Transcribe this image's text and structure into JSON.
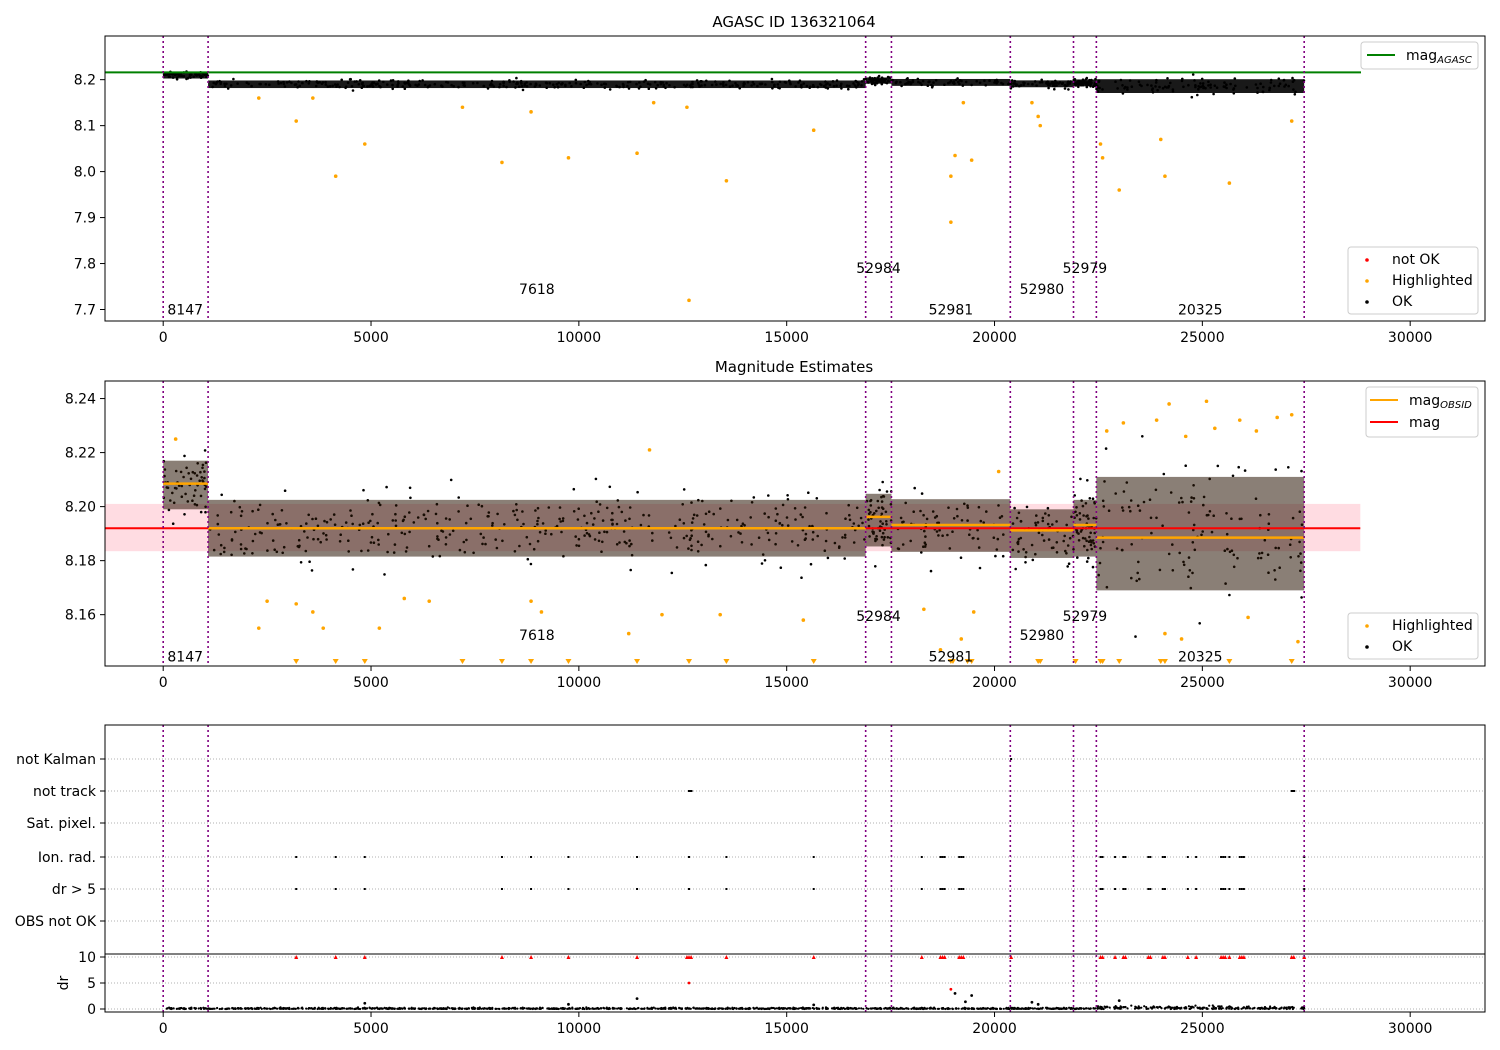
{
  "chart_data": [
    {
      "type": "scatter",
      "title": "AGASC ID 136321064",
      "xlim": [
        -1400,
        31800
      ],
      "ylim": [
        7.675,
        8.295
      ],
      "xticks": [
        0,
        5000,
        10000,
        15000,
        20000,
        25000,
        30000
      ],
      "yticks": [
        7.7,
        7.8,
        7.9,
        8.0,
        8.1,
        8.2
      ],
      "ytick_labels": [
        "7.7",
        "7.8",
        "7.9",
        "8.0",
        "8.1",
        "8.2"
      ],
      "grid": false,
      "mag_agasc": 8.216,
      "ok_band": [
        {
          "x0": 0,
          "x1": 1080,
          "center": 8.21,
          "halfwidth": 0.01
        },
        {
          "x0": 1080,
          "x1": 16900,
          "center": 8.19,
          "halfwidth": 0.011
        },
        {
          "x0": 16900,
          "x1": 17520,
          "center": 8.198,
          "halfwidth": 0.009
        },
        {
          "x0": 17520,
          "x1": 20380,
          "center": 8.194,
          "halfwidth": 0.01
        },
        {
          "x0": 20380,
          "x1": 21900,
          "center": 8.191,
          "halfwidth": 0.01
        },
        {
          "x0": 21900,
          "x1": 22450,
          "center": 8.193,
          "halfwidth": 0.01
        },
        {
          "x0": 22450,
          "x1": 27450,
          "center": 8.186,
          "halfwidth": 0.02
        }
      ],
      "highlighted_points": [
        [
          3200,
          8.11
        ],
        [
          4150,
          7.99
        ],
        [
          4850,
          8.06
        ],
        [
          8150,
          8.02
        ],
        [
          8850,
          8.13
        ],
        [
          9750,
          8.03
        ],
        [
          11400,
          8.04
        ],
        [
          12650,
          7.72
        ],
        [
          13550,
          7.98
        ],
        [
          15650,
          8.09
        ],
        [
          18950,
          7.99
        ],
        [
          18950,
          7.89
        ],
        [
          19050,
          8.035
        ],
        [
          19450,
          8.025
        ],
        [
          19250,
          8.15
        ],
        [
          21050,
          8.12
        ],
        [
          21100,
          8.1
        ],
        [
          22550,
          8.06
        ],
        [
          22600,
          8.03
        ],
        [
          23000,
          7.96
        ],
        [
          24000,
          8.07
        ],
        [
          24100,
          7.99
        ],
        [
          25650,
          7.975
        ],
        [
          27150,
          8.11
        ],
        [
          7200,
          8.14
        ],
        [
          11800,
          8.15
        ],
        [
          12600,
          8.14
        ],
        [
          20900,
          8.15
        ],
        [
          2300,
          8.16
        ],
        [
          3600,
          8.16
        ]
      ],
      "legend": {
        "position": "bottom-right",
        "entries": [
          {
            "label": "not OK",
            "color": "#ff0000"
          },
          {
            "label": "Highlighted",
            "color": "#ffa500"
          },
          {
            "label": "OK",
            "color": "#000000"
          }
        ]
      },
      "line_legend": {
        "position": "top-right",
        "entries": [
          {
            "label": "mag",
            "sub": "AGASC",
            "color": "#008000"
          }
        ]
      },
      "obsid_boundaries": [
        0,
        1080,
        16900,
        17520,
        20380,
        21900,
        22450,
        27450
      ],
      "obsid_labels": [
        {
          "text": "8147",
          "x": 530,
          "y": 7.7
        },
        {
          "text": "7618",
          "x": 8990,
          "y": 7.745
        },
        {
          "text": "52984",
          "x": 17210,
          "y": 7.79
        },
        {
          "text": "52981",
          "x": 18950,
          "y": 7.7
        },
        {
          "text": "52980",
          "x": 21140,
          "y": 7.745
        },
        {
          "text": "52979",
          "x": 22175,
          "y": 7.79
        },
        {
          "text": "20325",
          "x": 24950,
          "y": 7.7
        }
      ]
    },
    {
      "type": "scatter",
      "title": "Magnitude Estimates",
      "xlim": [
        -1400,
        31800
      ],
      "ylim": [
        8.141,
        8.2465
      ],
      "xticks": [
        0,
        5000,
        10000,
        15000,
        20000,
        25000,
        30000
      ],
      "yticks": [
        8.16,
        8.18,
        8.2,
        8.22,
        8.24
      ],
      "ytick_labels": [
        "8.16",
        "8.18",
        "8.20",
        "8.22",
        "8.24"
      ],
      "grid": false,
      "mag": 8.192,
      "mag_band": [
        8.1835,
        8.201
      ],
      "mag_band_xrange": [
        -1400,
        28800
      ],
      "mag_obsid": [
        {
          "x0": 0,
          "x1": 1080,
          "value": 8.2085
        },
        {
          "x0": 1080,
          "x1": 16900,
          "value": 8.192
        },
        {
          "x0": 16900,
          "x1": 17520,
          "value": 8.1962
        },
        {
          "x0": 17520,
          "x1": 20380,
          "value": 8.1932
        },
        {
          "x0": 20380,
          "x1": 21900,
          "value": 8.1912
        },
        {
          "x0": 21900,
          "x1": 22450,
          "value": 8.1932
        },
        {
          "x0": 22450,
          "x1": 27450,
          "value": 8.1885
        }
      ],
      "ok_band": [
        {
          "x0": 0,
          "x1": 1080,
          "center": 8.208,
          "halfwidth": 0.012
        },
        {
          "x0": 1080,
          "x1": 16900,
          "center": 8.192,
          "halfwidth": 0.014
        },
        {
          "x0": 16900,
          "x1": 17520,
          "center": 8.195,
          "halfwidth": 0.013
        },
        {
          "x0": 17520,
          "x1": 20380,
          "center": 8.193,
          "halfwidth": 0.013
        },
        {
          "x0": 20380,
          "x1": 21900,
          "center": 8.19,
          "halfwidth": 0.012
        },
        {
          "x0": 21900,
          "x1": 22450,
          "center": 8.192,
          "halfwidth": 0.014
        },
        {
          "x0": 22450,
          "x1": 27450,
          "center": 8.19,
          "halfwidth": 0.028
        }
      ],
      "highlighted_points": [
        [
          300,
          8.225
        ],
        [
          2300,
          8.155
        ],
        [
          2500,
          8.165
        ],
        [
          3200,
          8.164
        ],
        [
          3600,
          8.161
        ],
        [
          3850,
          8.155
        ],
        [
          5200,
          8.155
        ],
        [
          5800,
          8.166
        ],
        [
          6400,
          8.165
        ],
        [
          8850,
          8.165
        ],
        [
          9100,
          8.161
        ],
        [
          11200,
          8.153
        ],
        [
          11700,
          8.221
        ],
        [
          12000,
          8.16
        ],
        [
          13400,
          8.16
        ],
        [
          15400,
          8.158
        ],
        [
          18300,
          8.162
        ],
        [
          18700,
          8.147
        ],
        [
          19200,
          8.151
        ],
        [
          19500,
          8.161
        ],
        [
          20100,
          8.213
        ],
        [
          22700,
          8.228
        ],
        [
          23100,
          8.231
        ],
        [
          23900,
          8.232
        ],
        [
          24200,
          8.238
        ],
        [
          24600,
          8.226
        ],
        [
          25100,
          8.239
        ],
        [
          25300,
          8.229
        ],
        [
          25900,
          8.232
        ],
        [
          26300,
          8.228
        ],
        [
          26800,
          8.233
        ],
        [
          27150,
          8.234
        ],
        [
          24100,
          8.153
        ],
        [
          24500,
          8.151
        ],
        [
          26100,
          8.159
        ],
        [
          27300,
          8.15
        ]
      ],
      "offscale_points_x": [
        3200,
        4150,
        4850,
        7200,
        8150,
        8850,
        9750,
        11400,
        12650,
        13550,
        15650,
        18950,
        19000,
        19350,
        19450,
        21050,
        21100,
        21950,
        22550,
        22600,
        23000,
        24000,
        24100,
        25650,
        27150
      ],
      "legend": {
        "position": "bottom-right",
        "entries": [
          {
            "label": "Highlighted",
            "color": "#ffa500"
          },
          {
            "label": "OK",
            "color": "#000000"
          }
        ]
      },
      "line_legend": {
        "position": "top-right",
        "entries": [
          {
            "label": "mag",
            "sub": "OBSID",
            "color": "#ffa500"
          },
          {
            "label": "mag",
            "sub": "",
            "color": "#ff0000"
          }
        ]
      },
      "obsid_boundaries": [
        0,
        1080,
        16900,
        17520,
        20380,
        21900,
        22450,
        27450
      ],
      "obsid_labels": [
        {
          "text": "8147",
          "x": 530,
          "y": 8.1445
        },
        {
          "text": "7618",
          "x": 8990,
          "y": 8.1525
        },
        {
          "text": "52984",
          "x": 17210,
          "y": 8.1595
        },
        {
          "text": "52981",
          "x": 18950,
          "y": 8.1445
        },
        {
          "text": "52980",
          "x": 21140,
          "y": 8.1525
        },
        {
          "text": "52979",
          "x": 22175,
          "y": 8.1595
        },
        {
          "text": "20325",
          "x": 24950,
          "y": 8.1445
        }
      ]
    },
    {
      "type": "scatter",
      "title": "",
      "xlim": [
        -1400,
        31800
      ],
      "xticks": [
        0,
        5000,
        10000,
        15000,
        20000,
        25000,
        30000
      ],
      "flag_rows": [
        "not Kalman",
        "not track",
        "Sat. pixel.",
        "Ion. rad.",
        "dr > 5",
        "OBS not OK"
      ],
      "flag_points": {
        "not Kalman": [
          20400
        ],
        "not track": [
          12650,
          12670,
          12690,
          12710,
          27150,
          27170,
          27190,
          27210
        ],
        "Sat. pixel.": [],
        "Ion. rad.": [
          3200,
          4150,
          4850,
          8150,
          8850,
          9750,
          11400,
          12650,
          13550,
          15650,
          18250,
          18700,
          18750,
          18800,
          19150,
          19200,
          19250,
          22550,
          22600,
          22900,
          23100,
          23150,
          23700,
          23750,
          24050,
          24100,
          24650,
          24850,
          25450,
          25500,
          25550,
          25650,
          25900,
          25950,
          26000,
          27450
        ],
        "dr > 5": [
          3200,
          4150,
          4850,
          8150,
          8850,
          9750,
          11400,
          12650,
          13550,
          15650,
          18250,
          18700,
          18750,
          18800,
          19150,
          19200,
          19250,
          22550,
          22600,
          22900,
          23100,
          23150,
          23700,
          23750,
          24050,
          24100,
          24650,
          24850,
          25450,
          25500,
          25550,
          25650,
          25900,
          25950,
          26000,
          27450
        ],
        "OBS not OK": []
      },
      "dr_axis": {
        "ylabel": "dr",
        "ylim": [
          -0.5,
          10.6
        ],
        "yticks": [
          0,
          5,
          10
        ],
        "ytick_labels": [
          "0",
          "5",
          "10"
        ],
        "clip_value": 10,
        "clipped_x": [
          3200,
          4150,
          4850,
          8150,
          8850,
          9750,
          11400,
          12600,
          12650,
          12700,
          13550,
          15650,
          18250,
          18700,
          18750,
          18800,
          19150,
          19200,
          19250,
          20400,
          22550,
          22600,
          22900,
          23100,
          23150,
          23700,
          23750,
          24050,
          24100,
          24650,
          24850,
          25450,
          25500,
          25550,
          25650,
          25900,
          25950,
          26000,
          27150,
          27200,
          27450
        ],
        "scattered_points": [
          [
            12650,
            5.0
          ],
          [
            18950,
            3.8
          ],
          [
            19050,
            3.0
          ],
          [
            19450,
            2.6
          ],
          [
            20900,
            1.3
          ],
          [
            21050,
            0.9
          ],
          [
            23000,
            1.6
          ],
          [
            11400,
            2.0
          ],
          [
            4850,
            1.1
          ],
          [
            9750,
            0.9
          ],
          [
            15650,
            0.8
          ],
          [
            19300,
            1.4
          ]
        ]
      },
      "obsid_boundaries": [
        0,
        1080,
        16900,
        17520,
        20380,
        21900,
        22450,
        27450
      ]
    }
  ]
}
